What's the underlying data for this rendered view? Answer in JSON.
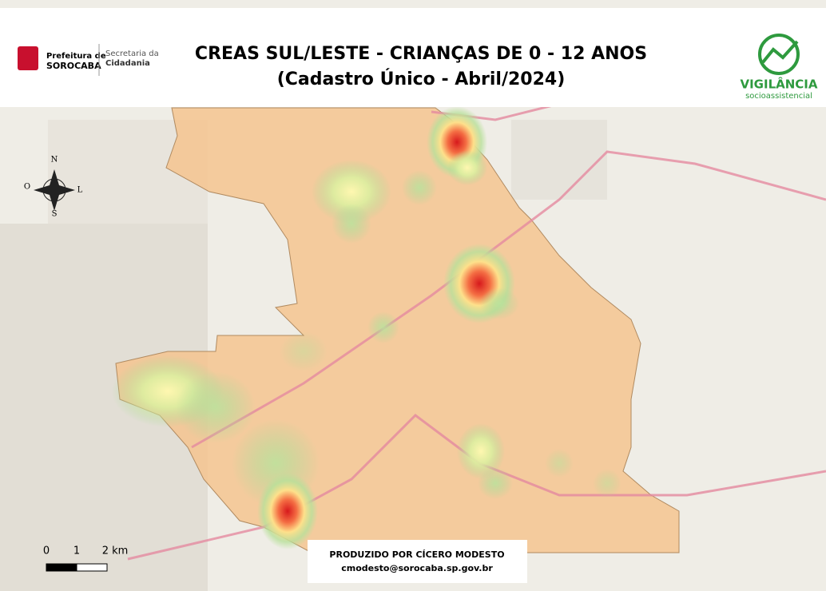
{
  "header": {
    "title": "CREAS SUL/LESTE - CRIANÇAS DE 0 - 12 ANOS",
    "subtitle": "(Cadastro Único - Abril/2024)",
    "logo_left": {
      "line1": "Prefeitura de",
      "line2": "SOROCABA",
      "secretaria": "Secretaria da",
      "cidadania": "Cidadania"
    },
    "logo_right": {
      "name": "VIGILÂNCIA",
      "tagline": "socioassistencial"
    }
  },
  "compass": {
    "north": "N",
    "south": "S",
    "east": "L",
    "west": "O"
  },
  "scale_bar": {
    "labels": [
      "0",
      "1",
      "2 km"
    ]
  },
  "credit": {
    "line1": "PRODUZIDO POR CÍCERO MODESTO",
    "line2": "cmodesto@sorocaba.sp.gov.br"
  }
}
